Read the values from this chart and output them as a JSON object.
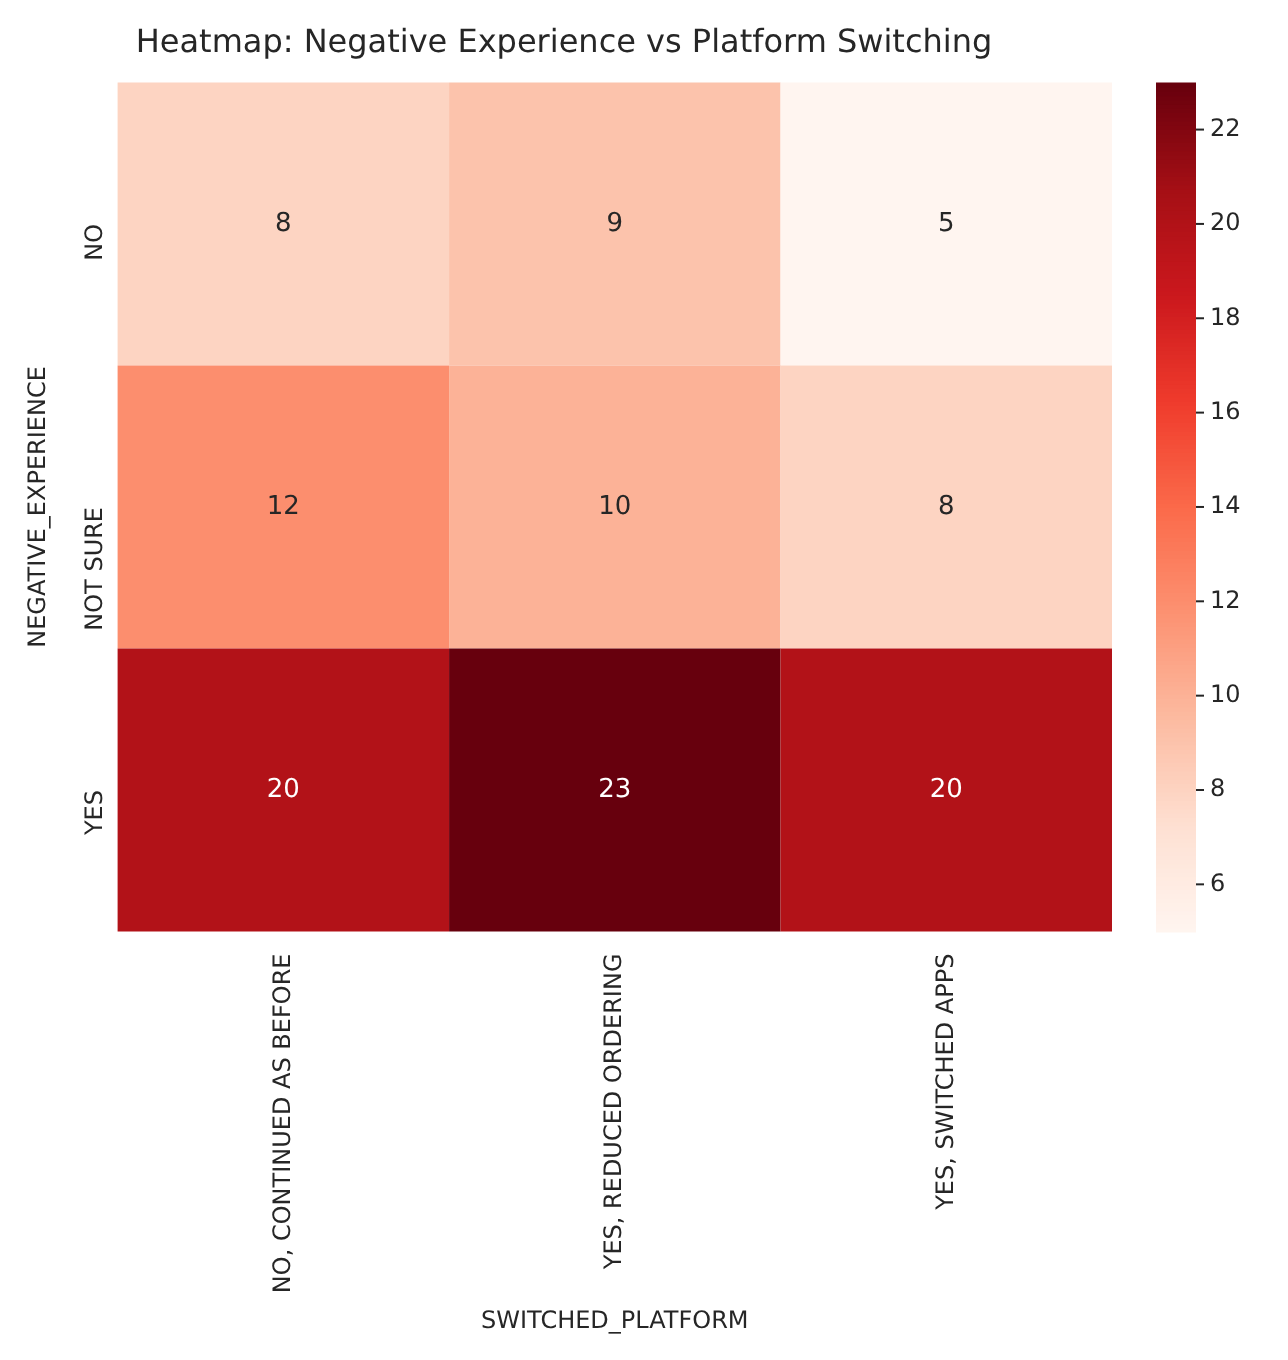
{
  "chart_data": {
    "type": "heatmap",
    "title": "Heatmap: Negative Experience vs Platform Switching",
    "xlabel": "SWITCHED_PLATFORM",
    "ylabel": "NEGATIVE_EXPERIENCE",
    "categories": [
      "NO, CONTINUED AS BEFORE",
      "YES, REDUCED ORDERING",
      "YES, SWITCHED APPS"
    ],
    "y_categories": [
      "NO",
      "NOT SURE",
      "YES"
    ],
    "cells": [
      [
        8,
        9,
        5
      ],
      [
        12,
        10,
        8
      ],
      [
        20,
        23,
        20
      ]
    ],
    "clim": [
      5,
      23
    ],
    "cticks": [
      6,
      8,
      10,
      12,
      14,
      16,
      18,
      20,
      22
    ],
    "data_labels": true
  }
}
